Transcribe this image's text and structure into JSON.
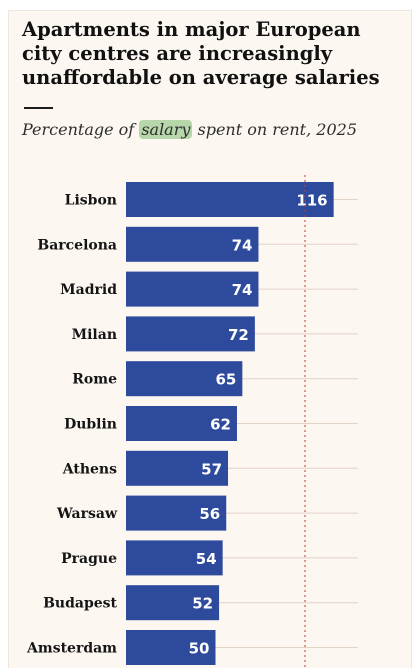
{
  "title": "Apartments in major European city centres are increasingly unaffordable on average salaries",
  "subtitle": {
    "before": "Percentage of ",
    "highlight": "salary",
    "after": " spent on rent, 2025"
  },
  "colors": {
    "bar": "#2e4a9c",
    "highlight": "#b7d6aa",
    "reference_line": "#c0392b",
    "gridline": "#e2d3c7"
  },
  "chart_data": {
    "type": "bar",
    "orientation": "horizontal",
    "title": "Apartments in major European city centres are increasingly unaffordable on average salaries",
    "subtitle": "Percentage of salary spent on rent, 2025",
    "categories": [
      "Lisbon",
      "Barcelona",
      "Madrid",
      "Milan",
      "Rome",
      "Dublin",
      "Athens",
      "Warsaw",
      "Prague",
      "Budapest",
      "Amsterdam"
    ],
    "values": [
      116,
      74,
      74,
      72,
      65,
      62,
      57,
      56,
      54,
      52,
      50
    ],
    "value_labels": [
      "116",
      "74",
      "74",
      "72",
      "65",
      "62",
      "57",
      "56",
      "54",
      "52",
      "50"
    ],
    "reference_line": 100,
    "xlim": [
      0,
      130
    ],
    "grid": true,
    "legend": "none"
  }
}
